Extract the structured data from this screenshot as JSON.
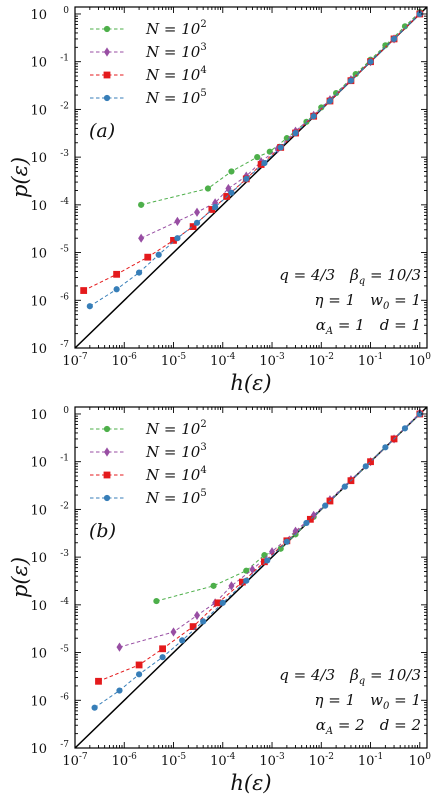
{
  "chart_data": [
    {
      "type": "scatter",
      "panel_label": "(a)",
      "xlabel": "h(ε)",
      "ylabel": "p(ε)",
      "xscale": "log",
      "yscale": "log",
      "xlim": [
        1e-07,
        1.4
      ],
      "ylim": [
        1e-07,
        1.4
      ],
      "xticks": [
        1e-07,
        1e-06,
        1e-05,
        0.0001,
        0.001,
        0.01,
        0.1,
        1
      ],
      "yticks": [
        1e-07,
        1e-06,
        1e-05,
        0.0001,
        0.001,
        0.01,
        0.1,
        1
      ],
      "tick_exponents": [
        "-7",
        "-6",
        "-5",
        "-4",
        "-3",
        "-2",
        "-1",
        "0"
      ],
      "tick_base": "10",
      "legend_position": "top-left",
      "reference_line": "y = x",
      "parameters": [
        [
          "q = 4/3",
          "βq = 10/3"
        ],
        [
          "η = 1",
          "w0 = 1"
        ],
        [
          "αA = 1",
          "d = 1"
        ]
      ],
      "series": [
        {
          "name": "N = 10^2",
          "color": "#4daf4a",
          "marker": "circle",
          "x": [
            2.2e-06,
            5e-05,
            0.00015,
            0.0005,
            0.0009,
            0.002,
            0.005,
            0.01,
            0.02,
            0.05,
            0.1,
            0.2,
            0.5,
            1
          ],
          "y": [
            0.0001,
            0.00022,
            0.0005,
            0.001,
            0.0013,
            0.0025,
            0.0055,
            0.011,
            0.022,
            0.055,
            0.11,
            0.22,
            0.55,
            1.1
          ]
        },
        {
          "name": "N = 10^3",
          "color": "#984ea3",
          "marker": "diamond",
          "x": [
            2.2e-06,
            1.2e-05,
            3e-05,
            7e-05,
            0.00013,
            0.0003,
            0.0006,
            0.0013,
            0.003,
            0.007,
            0.015,
            0.04,
            0.1,
            0.3,
            1
          ],
          "y": [
            2e-05,
            4.5e-05,
            7e-05,
            0.00011,
            0.00022,
            0.0004,
            0.0008,
            0.0015,
            0.0035,
            0.0075,
            0.016,
            0.042,
            0.1,
            0.3,
            1.05
          ]
        },
        {
          "name": "N = 10^4",
          "color": "#e41a1c",
          "marker": "square",
          "x": [
            1.5e-07,
            7e-07,
            3e-06,
            1e-05,
            2.5e-05,
            6e-05,
            0.00012,
            0.0003,
            0.0006,
            0.0015,
            0.003,
            0.007,
            0.015,
            0.04,
            0.1,
            0.3,
            1
          ],
          "y": [
            1.6e-06,
            3.5e-06,
            8e-06,
            1.8e-05,
            3.5e-05,
            8e-05,
            0.00015,
            0.00035,
            0.0007,
            0.0016,
            0.0032,
            0.0072,
            0.015,
            0.04,
            0.1,
            0.3,
            1
          ]
        },
        {
          "name": "N = 10^5",
          "color": "#377eb8",
          "marker": "circle",
          "x": [
            2e-07,
            7e-07,
            2e-06,
            5e-06,
            1.2e-05,
            3e-05,
            7e-05,
            0.00015,
            0.0003,
            0.0007,
            0.0015,
            0.003,
            0.007,
            0.015,
            0.04,
            0.1,
            0.3,
            1
          ],
          "y": [
            7.5e-07,
            1.7e-06,
            3.8e-06,
            9e-06,
            2e-05,
            4.2e-05,
            9e-05,
            0.00018,
            0.00035,
            0.00075,
            0.0016,
            0.0032,
            0.0072,
            0.015,
            0.04,
            0.1,
            0.3,
            1
          ]
        }
      ]
    },
    {
      "type": "scatter",
      "panel_label": "(b)",
      "xlabel": "h(ε)",
      "ylabel": "p(ε)",
      "xscale": "log",
      "yscale": "log",
      "xlim": [
        1e-07,
        1.4
      ],
      "ylim": [
        1e-07,
        1.4
      ],
      "xticks": [
        1e-07,
        1e-06,
        1e-05,
        0.0001,
        0.001,
        0.01,
        0.1,
        1
      ],
      "yticks": [
        1e-07,
        1e-06,
        1e-05,
        0.0001,
        0.001,
        0.01,
        0.1,
        1
      ],
      "tick_exponents": [
        "-7",
        "-6",
        "-5",
        "-4",
        "-3",
        "-2",
        "-1",
        "0"
      ],
      "tick_base": "10",
      "legend_position": "top-left",
      "reference_line": "y = x",
      "parameters": [
        [
          "q = 4/3",
          "βq = 10/3"
        ],
        [
          "η = 1",
          "w0 = 1"
        ],
        [
          "αA = 2",
          "d = 2"
        ]
      ],
      "series": [
        {
          "name": "N = 10^2",
          "color": "#4daf4a",
          "marker": "circle",
          "x": [
            4.5e-06,
            6.5e-05,
            0.0003,
            0.0007,
            0.0015,
            0.003,
            0.007,
            0.015,
            0.04,
            0.1,
            0.3,
            1
          ],
          "y": [
            0.00012,
            0.00025,
            0.00052,
            0.0011,
            0.0015,
            0.003,
            0.007,
            0.015,
            0.04,
            0.1,
            0.3,
            1
          ]
        },
        {
          "name": "N = 10^3",
          "color": "#984ea3",
          "marker": "diamond",
          "x": [
            8e-07,
            1e-05,
            3e-05,
            7e-05,
            0.00015,
            0.0004,
            0.001,
            0.003,
            0.007,
            0.015,
            0.04,
            0.1,
            0.3,
            1
          ],
          "y": [
            1.3e-05,
            2.7e-05,
            6e-05,
            0.00011,
            0.00025,
            0.00055,
            0.0013,
            0.0035,
            0.0075,
            0.016,
            0.042,
            0.1,
            0.3,
            1.05
          ]
        },
        {
          "name": "N = 10^4",
          "color": "#e41a1c",
          "marker": "square",
          "x": [
            3e-07,
            2e-06,
            6e-06,
            2.5e-05,
            8e-05,
            0.00025,
            0.0007,
            0.002,
            0.006,
            0.015,
            0.04,
            0.1,
            0.3,
            1
          ],
          "y": [
            2.5e-06,
            5.5e-06,
            1.2e-05,
            3.5e-05,
            0.00011,
            0.0003,
            0.0008,
            0.0022,
            0.0062,
            0.015,
            0.04,
            0.1,
            0.3,
            1
          ]
        },
        {
          "name": "N = 10^5",
          "color": "#377eb8",
          "marker": "circle",
          "x": [
            2.5e-07,
            8e-07,
            2e-06,
            6e-06,
            1.5e-05,
            4e-05,
            0.0001,
            0.0003,
            0.0008,
            0.002,
            0.005,
            0.012,
            0.03,
            0.08,
            0.2,
            0.5,
            1
          ],
          "y": [
            7e-07,
            1.6e-06,
            3.5e-06,
            8e-06,
            1.8e-05,
            4.5e-05,
            0.00011,
            0.00032,
            0.00085,
            0.0021,
            0.0052,
            0.012,
            0.03,
            0.08,
            0.2,
            0.5,
            1
          ]
        }
      ]
    }
  ]
}
